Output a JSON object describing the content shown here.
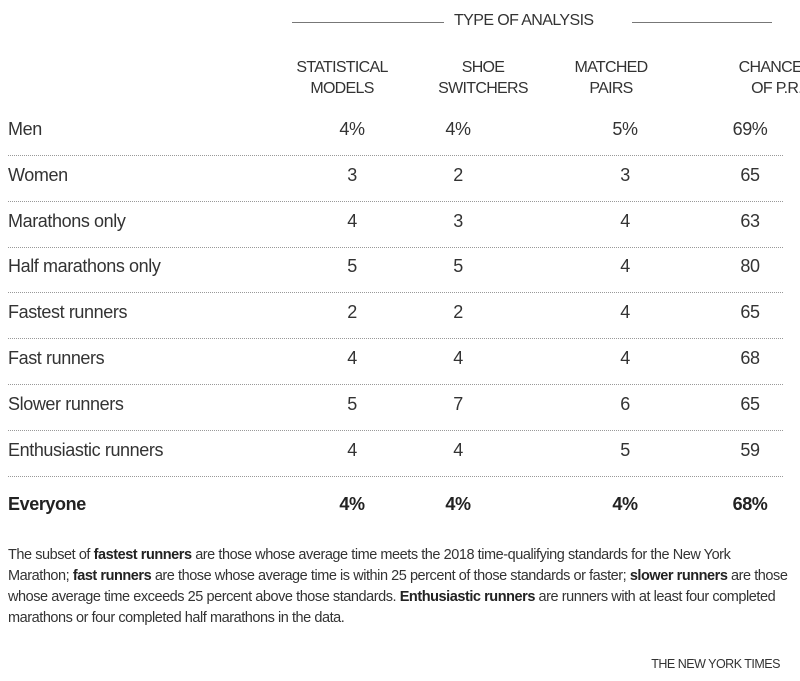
{
  "chart_data": {
    "type": "table",
    "title": "",
    "column_group": "TYPE OF ANALYSIS",
    "columns": [
      {
        "line1": "STATISTICAL",
        "line2": "MODELS"
      },
      {
        "line1": "SHOE",
        "line2": "SWITCHERS"
      },
      {
        "line1": "MATCHED",
        "line2": "PAIRS"
      },
      {
        "line1": "CHANCE",
        "line2": "OF P.R."
      }
    ],
    "rows": [
      {
        "label": "Men",
        "values": [
          "4%",
          "4%",
          "5%",
          "69%"
        ]
      },
      {
        "label": "Women",
        "values": [
          "3",
          "2",
          "3",
          "65"
        ]
      },
      {
        "label": "Marathons only",
        "values": [
          "4",
          "3",
          "4",
          "63"
        ]
      },
      {
        "label": "Half marathons only",
        "values": [
          "5",
          "5",
          "4",
          "80"
        ]
      },
      {
        "label": "Fastest runners",
        "values": [
          "2",
          "2",
          "4",
          "65"
        ]
      },
      {
        "label": "Fast runners",
        "values": [
          "4",
          "4",
          "4",
          "68"
        ]
      },
      {
        "label": "Slower runners",
        "values": [
          "5",
          "7",
          "6",
          "65"
        ]
      },
      {
        "label": "Enthusiastic runners",
        "values": [
          "4",
          "4",
          "5",
          "59"
        ]
      }
    ],
    "total": {
      "label": "Everyone",
      "values": [
        "4%",
        "4%",
        "4%",
        "68%"
      ]
    }
  },
  "note": [
    {
      "text": "The subset of ",
      "bold": false
    },
    {
      "text": "fastest runners",
      "bold": true
    },
    {
      "text": " are those whose average time meets the 2018 time-qualifying standards for the New York Marathon; ",
      "bold": false
    },
    {
      "text": "fast runners",
      "bold": true
    },
    {
      "text": " are those whose average time is within 25 percent of those standards or faster; ",
      "bold": false
    },
    {
      "text": "slower runners",
      "bold": true
    },
    {
      "text": " are those whose average time exceeds 25 percent above those standards. ",
      "bold": false
    },
    {
      "text": "Enthusiastic runners",
      "bold": true
    },
    {
      "text": " are runners with at least four completed marathons or four completed half marathons in the data.",
      "bold": false
    }
  ],
  "credit": "THE NEW YORK TIMES"
}
